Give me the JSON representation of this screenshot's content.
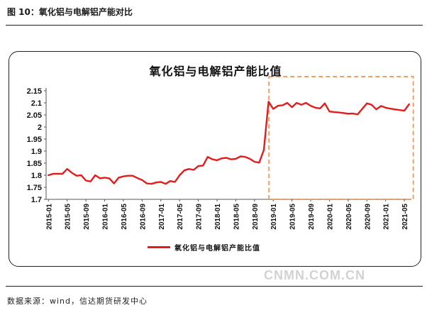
{
  "header": {
    "figure_title": "图 10：氧化铝与电解铝产能对比"
  },
  "chart_data": {
    "type": "line",
    "title": "氧化铝与电解铝产能比值",
    "ylim": [
      1.7,
      2.15
    ],
    "yticks": [
      "2.15",
      "2.1",
      "2.05",
      "2",
      "1.95",
      "1.9",
      "1.85",
      "1.8",
      "1.75",
      "1.7"
    ],
    "xticks": [
      "2015-01",
      "2015-05",
      "2015-09",
      "2016-01",
      "2016-05",
      "2016-09",
      "2017-01",
      "2017-05",
      "2017-09",
      "2018-01",
      "2018-05",
      "2018-09",
      "2019-01",
      "2019-05",
      "2019-09",
      "2020-01",
      "2020-05",
      "2020-09",
      "2021-01",
      "2021-05"
    ],
    "grid": false,
    "legend": "bottom",
    "highlight_box": {
      "from": "2019-01",
      "to": "2021-06",
      "style": "dashed",
      "color": "#f0a064"
    },
    "series": [
      {
        "name": "氧化铝与电解铝产能比值",
        "color": "#e31c1c",
        "x": [
          "2015-01",
          "2015-02",
          "2015-03",
          "2015-04",
          "2015-05",
          "2015-06",
          "2015-07",
          "2015-08",
          "2015-09",
          "2015-10",
          "2015-11",
          "2015-12",
          "2016-01",
          "2016-02",
          "2016-03",
          "2016-04",
          "2016-05",
          "2016-06",
          "2016-07",
          "2016-08",
          "2016-09",
          "2016-10",
          "2016-11",
          "2016-12",
          "2017-01",
          "2017-02",
          "2017-03",
          "2017-04",
          "2017-05",
          "2017-06",
          "2017-07",
          "2017-08",
          "2017-09",
          "2017-10",
          "2017-11",
          "2017-12",
          "2018-01",
          "2018-02",
          "2018-03",
          "2018-04",
          "2018-05",
          "2018-06",
          "2018-07",
          "2018-08",
          "2018-09",
          "2018-10",
          "2018-11",
          "2018-12",
          "2019-01",
          "2019-02",
          "2019-03",
          "2019-04",
          "2019-05",
          "2019-06",
          "2019-07",
          "2019-08",
          "2019-09",
          "2019-10",
          "2019-11",
          "2019-12",
          "2020-01",
          "2020-02",
          "2020-03",
          "2020-04",
          "2020-05",
          "2020-06",
          "2020-07",
          "2020-08",
          "2020-09",
          "2020-10",
          "2020-11",
          "2020-12",
          "2021-01",
          "2021-02",
          "2021-03",
          "2021-04",
          "2021-05",
          "2021-06"
        ],
        "values": [
          1.8,
          1.806,
          1.806,
          1.806,
          1.826,
          1.81,
          1.798,
          1.8,
          1.778,
          1.774,
          1.8,
          1.787,
          1.79,
          1.787,
          1.766,
          1.79,
          1.795,
          1.798,
          1.798,
          1.788,
          1.78,
          1.766,
          1.764,
          1.77,
          1.772,
          1.764,
          1.776,
          1.772,
          1.8,
          1.82,
          1.826,
          1.822,
          1.838,
          1.84,
          1.876,
          1.866,
          1.862,
          1.87,
          1.872,
          1.866,
          1.868,
          1.878,
          1.876,
          1.868,
          1.856,
          1.852,
          1.905,
          2.105,
          2.075,
          2.088,
          2.09,
          2.1,
          2.082,
          2.1,
          2.092,
          2.1,
          2.088,
          2.08,
          2.077,
          2.098,
          2.064,
          2.062,
          2.06,
          2.058,
          2.055,
          2.056,
          2.052,
          2.075,
          2.098,
          2.092,
          2.073,
          2.087,
          2.08,
          2.076,
          2.073,
          2.07,
          2.068,
          2.094
        ]
      }
    ]
  },
  "legend": {
    "label": "氧化铝与电解铝产能比值"
  },
  "footer": {
    "source": "数据来源：wind，信达期货研发中心",
    "watermark": "CNMN.COM.CN"
  }
}
